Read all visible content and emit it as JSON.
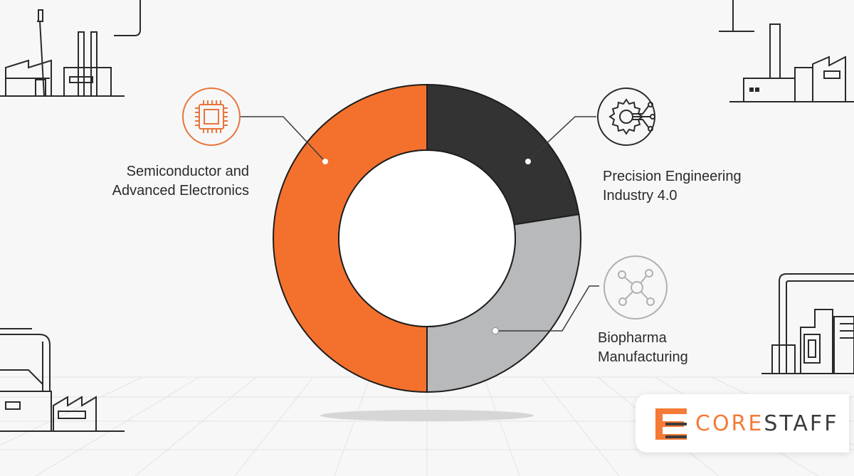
{
  "chart_data": {
    "type": "pie",
    "donut": true,
    "categories": [
      "Precision Engineering Industry 4.0",
      "Biopharma Manufacturing",
      "Semiconductor and Advanced Electronics"
    ],
    "values": [
      22.5,
      27.5,
      50
    ],
    "colors": [
      "#333333",
      "#b7b9bb",
      "#f4712d"
    ],
    "slice_labels": {
      "semiconductor": [
        "Semiconductor and",
        "Advanced Electronics"
      ],
      "precision": [
        "Precision Engineering",
        "Industry 4.0"
      ],
      "biopharma": [
        "Biopharma",
        "Manufacturing"
      ]
    }
  },
  "icons": {
    "semiconductor": "chip-icon",
    "precision": "gear-network-icon",
    "biopharma": "molecule-icon"
  },
  "brand": {
    "word_core": "CORE",
    "word_staff": "STAFF",
    "accent_color": "#f47a36"
  }
}
